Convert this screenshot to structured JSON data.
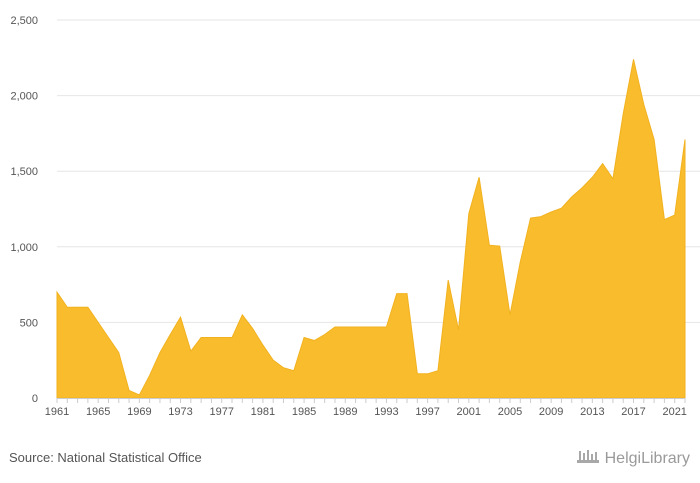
{
  "chart_data": {
    "type": "area",
    "title": "",
    "xlabel": "",
    "ylabel": "",
    "ylim": [
      0,
      2500
    ],
    "y_ticks": [
      "0",
      "500",
      "1,000",
      "1,500",
      "2,000",
      "2,500"
    ],
    "y_tick_values": [
      0,
      500,
      1000,
      1500,
      2000,
      2500
    ],
    "x_ticks": [
      "1961",
      "1965",
      "1969",
      "1973",
      "1977",
      "1981",
      "1985",
      "1989",
      "1993",
      "1997",
      "2001",
      "2005",
      "2009",
      "2013",
      "2017",
      "2021"
    ],
    "x_tick_values": [
      1961,
      1965,
      1969,
      1973,
      1977,
      1981,
      1985,
      1989,
      1993,
      1997,
      2001,
      2005,
      2009,
      2013,
      2017,
      2021
    ],
    "grid": true,
    "legend": "none",
    "color": "#F9BC2D",
    "series": [
      {
        "x": [
          1961,
          1962,
          1963,
          1964,
          1965,
          1966,
          1967,
          1968,
          1969,
          1970,
          1971,
          1972,
          1973,
          1974,
          1975,
          1976,
          1977,
          1978,
          1979,
          1980,
          1981,
          1982,
          1983,
          1984,
          1985,
          1986,
          1987,
          1988,
          1989,
          1990,
          1991,
          1992,
          1993,
          1994,
          1995,
          1996,
          1997,
          1998,
          1999,
          2000,
          2001,
          2002,
          2003,
          2004,
          2005,
          2006,
          2007,
          2008,
          2009,
          2010,
          2011,
          2012,
          2013,
          2014,
          2015,
          2016,
          2017,
          2018,
          2019,
          2020,
          2021,
          2022
        ],
        "values": [
          700,
          600,
          600,
          600,
          500,
          400,
          300,
          50,
          20,
          150,
          300,
          420,
          535,
          310,
          400,
          400,
          400,
          400,
          550,
          460,
          350,
          250,
          200,
          180,
          400,
          380,
          420,
          470,
          470,
          470,
          470,
          470,
          470,
          690,
          690,
          160,
          160,
          180,
          780,
          450,
          1220,
          1460,
          1010,
          1005,
          550,
          900,
          1190,
          1200,
          1230,
          1255,
          1330,
          1390,
          1460,
          1550,
          1450,
          1880,
          2240,
          1940,
          1710,
          1180,
          1210,
          1710
        ]
      }
    ]
  },
  "footer": {
    "source": "Source: National Statistical Office",
    "logo_text": "HelgiLibrary"
  }
}
